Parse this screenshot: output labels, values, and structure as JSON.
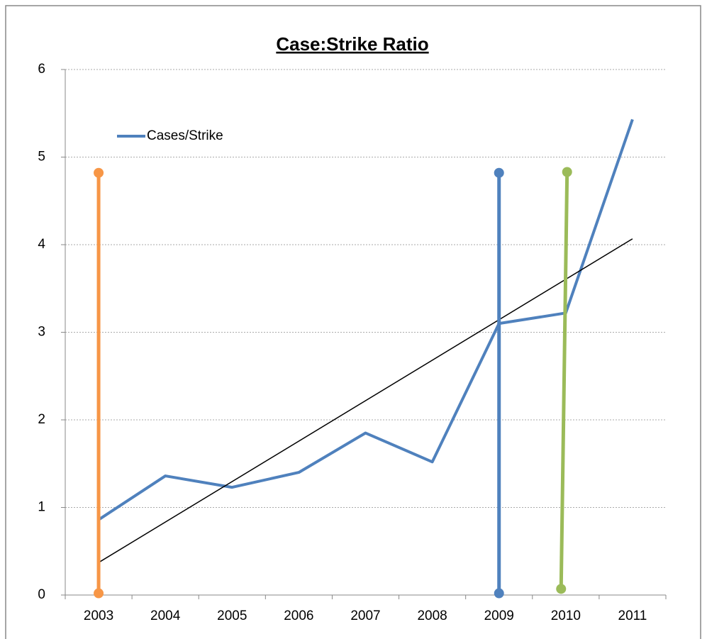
{
  "chart_data": {
    "type": "line",
    "title": "Case:Strike Ratio",
    "categories": [
      "2003",
      "2004",
      "2005",
      "2006",
      "2007",
      "2008",
      "2009",
      "2010",
      "2011"
    ],
    "series": [
      {
        "name": "Cases/Strike",
        "color": "#4f81bd",
        "values": [
          0.86,
          1.36,
          1.23,
          1.4,
          1.85,
          1.52,
          3.1,
          3.22,
          5.43
        ]
      }
    ],
    "markers": [
      {
        "color": "#f79646",
        "x": [
          2003,
          2003
        ],
        "values": [
          0.02,
          4.82
        ]
      },
      {
        "color": "#4f81bd",
        "x": [
          2009,
          2009
        ],
        "values": [
          0.02,
          4.82
        ]
      },
      {
        "color": "#9bbb59",
        "x": [
          2009.93,
          2010.02
        ],
        "values": [
          0.07,
          4.83
        ]
      }
    ],
    "trendline": "linear",
    "ylim": [
      0,
      6
    ],
    "yticks": [
      0,
      1,
      2,
      3,
      4,
      5,
      6
    ],
    "grid": true,
    "legend": "top-left"
  }
}
